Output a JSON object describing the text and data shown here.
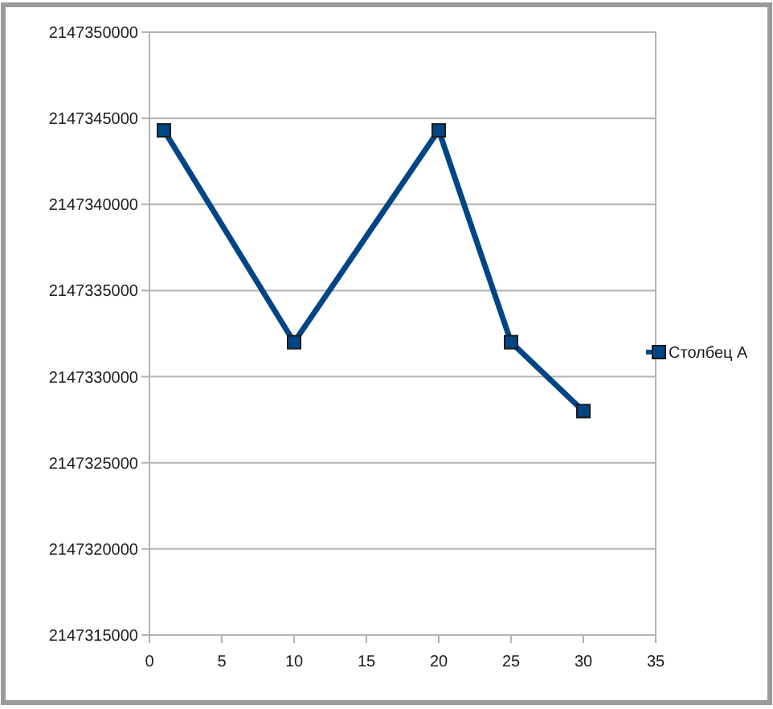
{
  "chart_data": {
    "type": "line",
    "x": [
      1,
      10,
      20,
      25,
      30
    ],
    "series": [
      {
        "name": "Столбец A",
        "color": "#004586",
        "values": [
          2147344300,
          2147332000,
          2147344300,
          2147332000,
          2147328000
        ]
      }
    ],
    "xlim": [
      0,
      35
    ],
    "xticks": [
      0,
      5,
      10,
      15,
      20,
      25,
      30,
      35
    ],
    "ylim": [
      2147315000,
      2147350000
    ],
    "yticks": [
      2147315000,
      2147320000,
      2147325000,
      2147330000,
      2147335000,
      2147340000,
      2147345000,
      2147350000
    ],
    "grid": "y",
    "legend": "right",
    "marker": "square",
    "line_style": "solid"
  }
}
